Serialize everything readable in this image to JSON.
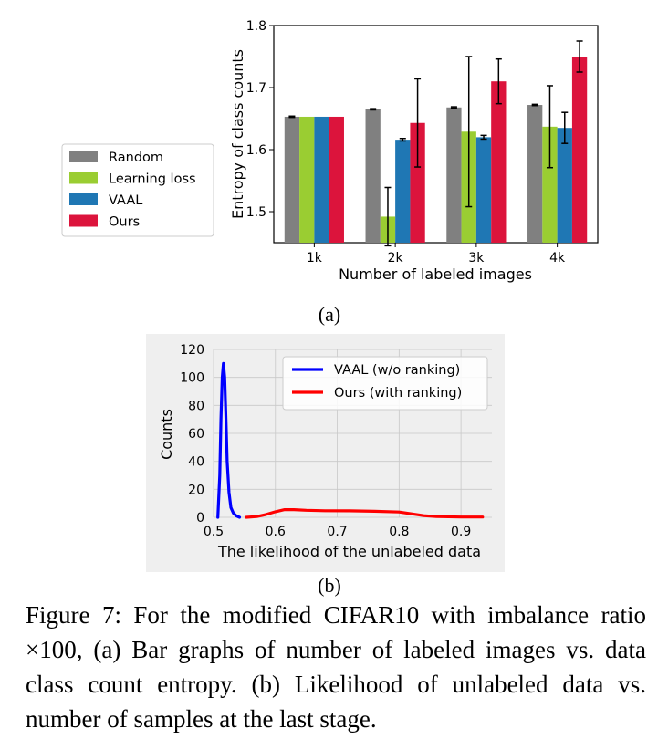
{
  "chart_data": [
    {
      "panel_label": "(a)",
      "type": "bar",
      "xlabel": "Number of labeled images",
      "ylabel": "Entropy of class counts",
      "categories": [
        "1k",
        "2k",
        "3k",
        "4k"
      ],
      "ylim": [
        1.45,
        1.8
      ],
      "yticks": [
        "1.5",
        "1.6",
        "1.7",
        "1.8"
      ],
      "legend_position": "left (outside plot)",
      "grid": false,
      "series": [
        {
          "name": "Random",
          "color": "#808080",
          "values": [
            1.653,
            1.665,
            1.668,
            1.672
          ],
          "errors": [
            0.001,
            0.001,
            0.001,
            0.001
          ]
        },
        {
          "name": "Learning loss",
          "color": "#9acd32",
          "values": [
            1.653,
            1.492,
            1.629,
            1.637
          ],
          "errors": [
            0.0,
            0.047,
            0.121,
            0.066
          ]
        },
        {
          "name": "VAAL",
          "color": "#1f77b4",
          "values": [
            1.653,
            1.616,
            1.62,
            1.635
          ],
          "errors": [
            0.0,
            0.002,
            0.003,
            0.025
          ]
        },
        {
          "name": "Ours",
          "color": "#dc143c",
          "values": [
            1.653,
            1.643,
            1.71,
            1.75
          ],
          "errors": [
            0.0,
            0.071,
            0.036,
            0.025
          ]
        }
      ]
    },
    {
      "panel_label": "(b)",
      "type": "line",
      "xlabel": "The likelihood of the unlabeled data",
      "ylabel": "Counts",
      "xlim": [
        0.5,
        0.95
      ],
      "ylim": [
        0,
        120
      ],
      "xticks": [
        "0.5",
        "0.6",
        "0.7",
        "0.8",
        "0.9"
      ],
      "yticks": [
        "0",
        "20",
        "40",
        "60",
        "80",
        "100",
        "120"
      ],
      "grid": true,
      "legend_position": "top-right",
      "series": [
        {
          "name": "VAAL (w/o ranking)",
          "color": "#0000ff",
          "x": [
            0.507,
            0.51,
            0.512,
            0.514,
            0.516,
            0.518,
            0.52,
            0.522,
            0.525,
            0.528,
            0.532,
            0.537,
            0.542
          ],
          "y": [
            0,
            30,
            70,
            100,
            110,
            100,
            70,
            40,
            18,
            7,
            3,
            1,
            0
          ]
        },
        {
          "name": "Ours (with ranking)",
          "color": "#ff0000",
          "x": [
            0.553,
            0.57,
            0.585,
            0.6,
            0.615,
            0.63,
            0.65,
            0.68,
            0.72,
            0.76,
            0.8,
            0.82,
            0.84,
            0.86,
            0.9,
            0.935
          ],
          "y": [
            0,
            0.5,
            2,
            4,
            5.5,
            5.5,
            5,
            4.7,
            4.6,
            4.3,
            3.8,
            2.5,
            1.2,
            0.5,
            0.2,
            0.2
          ]
        }
      ]
    }
  ],
  "caption": {
    "text": "Figure 7: For the modified CIFAR10 with imbalance ratio ×100, (a) Bar graphs of number of labeled images vs. data class count entropy. (b) Likelihood of unlabeled data vs. number of samples at the last stage."
  }
}
